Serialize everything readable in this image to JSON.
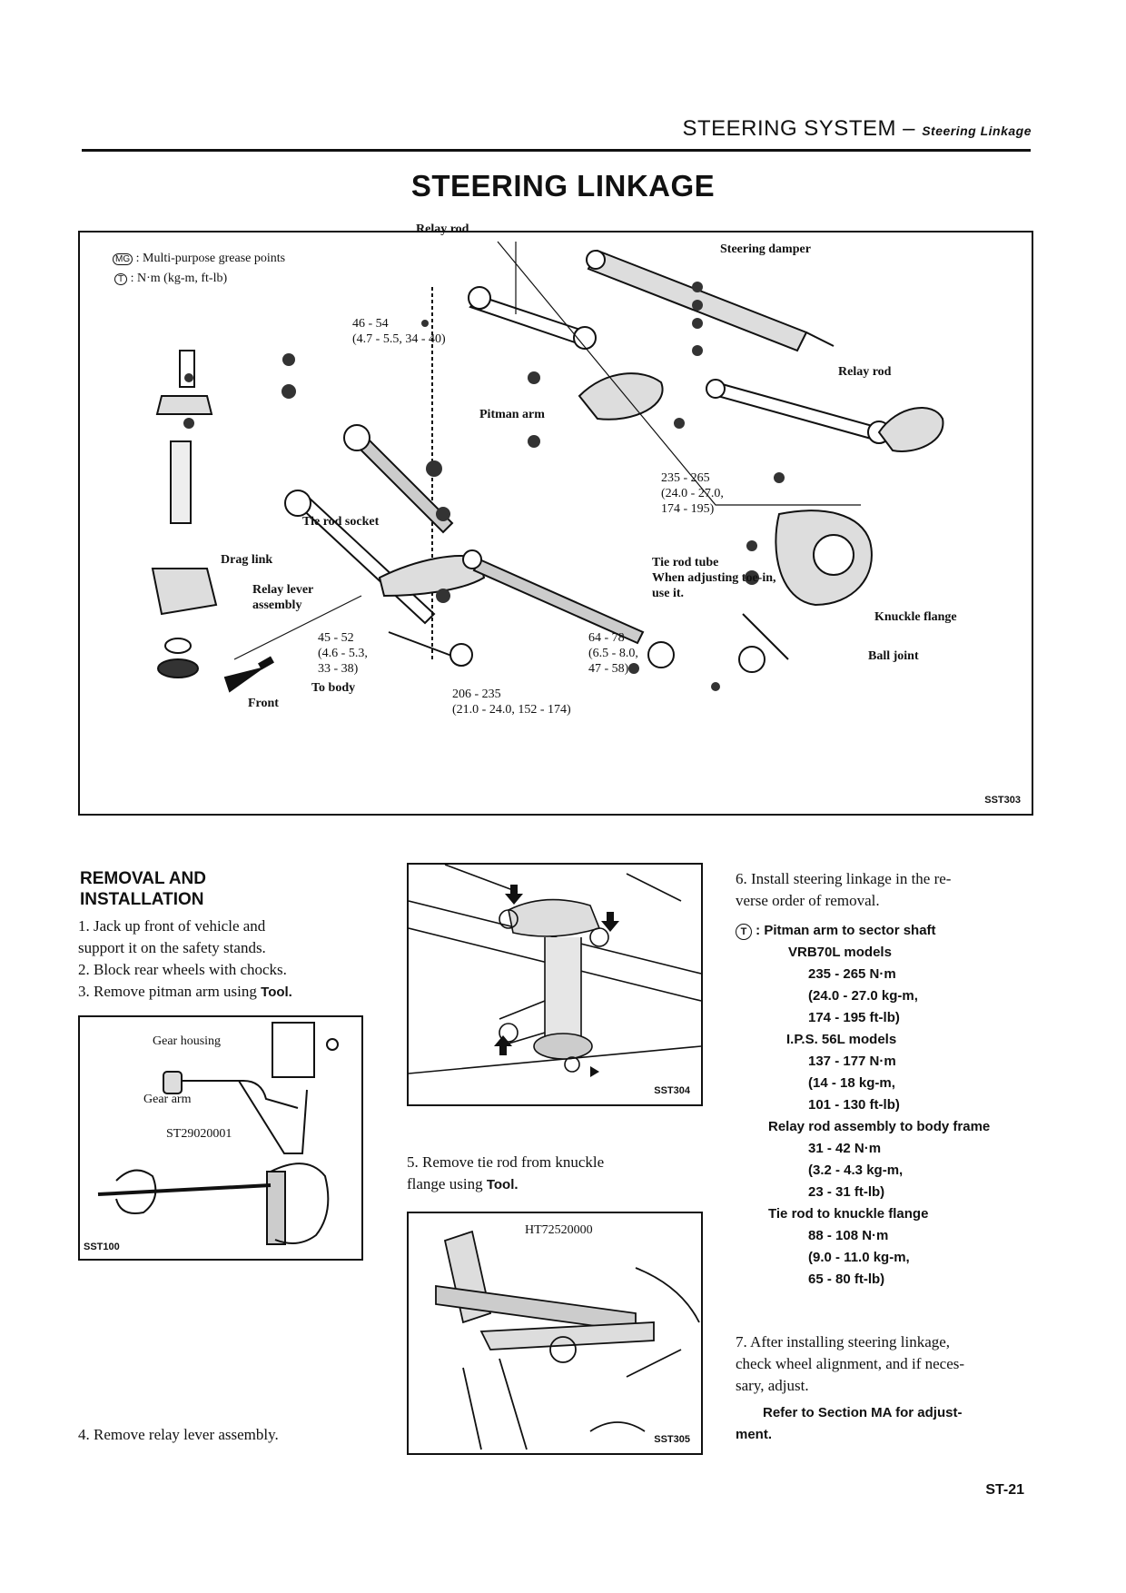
{
  "header": {
    "section": "STEERING SYSTEM",
    "dash": "–",
    "subsection": "Steering Linkage"
  },
  "title": "STEERING LINKAGE",
  "diagram": {
    "legend_mg": "MG",
    "legend_mg_text": ": Multi-purpose grease points",
    "legend_t": "T",
    "legend_t_text": ": N·m (kg-m, ft-lb)",
    "labels": {
      "relay_rod_top": "Relay rod",
      "steering_damper": "Steering damper",
      "relay_rod_right": "Relay rod",
      "pitman_arm": "Pitman arm",
      "tie_rod_socket": "Tie rod socket",
      "drag_link": "Drag link",
      "relay_lever_1": "Relay lever",
      "relay_lever_2": "assembly",
      "tie_rod_tube_1": "Tie rod tube",
      "tie_rod_tube_2": "When adjusting toe-in,",
      "tie_rod_tube_3": "use it.",
      "knuckle_flange": "Knuckle flange",
      "ball_joint": "Ball joint",
      "front": "Front",
      "to_body": "To body"
    },
    "torques": {
      "t1_a": "46 - 54",
      "t1_b": "(4.7 - 5.5, 34 - 40)",
      "t2_a": "235 - 265",
      "t2_b": "(24.0 - 27.0,",
      "t2_c": "174 - 195)",
      "t3_a": "45 - 52",
      "t3_b": "(4.6 - 5.3,",
      "t3_c": "33 - 38)",
      "t4_a": "64 - 78",
      "t4_b": "(6.5 - 8.0,",
      "t4_c": "47 - 58)",
      "t5_a": "206 - 235",
      "t5_b": "(21.0 - 24.0, 152 - 174)"
    },
    "code": "SST303"
  },
  "removal": {
    "title_1": "REMOVAL AND",
    "title_2": "INSTALLATION",
    "step1_a": "1.  Jack up front of vehicle and",
    "step1_b": "support it on the safety stands.",
    "step2": "2.   Block rear wheels with chocks.",
    "step3_a": "3.   Remove pitman arm using ",
    "step3_b": "Tool.",
    "step4": "4.   Remove relay lever assembly.",
    "step5_a": "5.   Remove tie rod from knuckle",
    "step5_b": "flange using ",
    "step5_c": "Tool."
  },
  "fig_sst100": {
    "gear_housing": "Gear housing",
    "gear_arm": "Gear arm",
    "tool": "ST29020001",
    "code": "SST100"
  },
  "fig_sst304": {
    "code": "SST304"
  },
  "fig_sst305": {
    "tool": "HT72520000",
    "code": "SST305"
  },
  "install": {
    "step6_a": "6.   Install steering linkage in the re-",
    "step6_b": "verse order of removal.",
    "t_symbol": "T",
    "pitman_title": ": Pitman arm to sector shaft",
    "vrb_title": "VRB70L models",
    "vrb_1": "235 - 265 N·m",
    "vrb_2": "(24.0 - 27.0 kg-m,",
    "vrb_3": "174 - 195 ft-lb)",
    "ips_title": "I.P.S. 56L models",
    "ips_1": "137 - 177 N·m",
    "ips_2": "(14 - 18 kg-m,",
    "ips_3": "101 - 130 ft-lb)",
    "relay_title": "Relay rod assembly to body frame",
    "relay_1": "31 - 42 N·m",
    "relay_2": "(3.2 - 4.3 kg-m,",
    "relay_3": "23 - 31 ft-lb)",
    "tie_title": "Tie rod to knuckle flange",
    "tie_1": "88 - 108 N·m",
    "tie_2": "(9.0 - 11.0 kg-m,",
    "tie_3": "65 - 80 ft-lb)",
    "step7_a": "7.   After installing steering linkage,",
    "step7_b": "check wheel alignment, and if neces-",
    "step7_c": "sary, adjust.",
    "refer_a": "Refer to Section MA for adjust-",
    "refer_b": "ment."
  },
  "page_number": "ST-21"
}
